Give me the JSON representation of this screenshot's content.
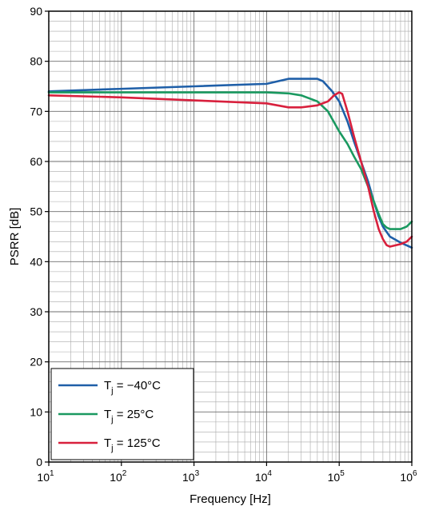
{
  "chart_data": {
    "type": "line",
    "xlabel": "Frequency [Hz]",
    "ylabel": "PSRR [dB]",
    "x_scale": "log",
    "xlim": [
      10,
      1000000
    ],
    "ylim": [
      0,
      90
    ],
    "grid": true,
    "legend_position": "bottom-left",
    "x_ticks": [
      {
        "value": 10,
        "base": "10",
        "exp": "1"
      },
      {
        "value": 100,
        "base": "10",
        "exp": "2"
      },
      {
        "value": 1000,
        "base": "10",
        "exp": "3"
      },
      {
        "value": 10000,
        "base": "10",
        "exp": "4"
      },
      {
        "value": 100000,
        "base": "10",
        "exp": "5"
      },
      {
        "value": 1000000,
        "base": "10",
        "exp": "6"
      }
    ],
    "y_ticks": [
      "0",
      "10",
      "20",
      "30",
      "40",
      "50",
      "60",
      "70",
      "80",
      "90"
    ],
    "series": [
      {
        "legend_main": "T",
        "legend_sub": "j",
        "legend_rest": " = −40°C",
        "color": "#1f5fa8",
        "points": [
          [
            10,
            74.0
          ],
          [
            100,
            74.5
          ],
          [
            1000,
            75.0
          ],
          [
            10000,
            75.5
          ],
          [
            20000,
            76.5
          ],
          [
            30000,
            76.5
          ],
          [
            50000,
            76.5
          ],
          [
            60000,
            76.0
          ],
          [
            80000,
            74.0
          ],
          [
            100000,
            72.0
          ],
          [
            130000,
            68.0
          ],
          [
            160000,
            64.0
          ],
          [
            200000,
            60.0
          ],
          [
            250000,
            56.0
          ],
          [
            300000,
            52.0
          ],
          [
            350000,
            49.0
          ],
          [
            400000,
            47.0
          ],
          [
            500000,
            45.0
          ],
          [
            700000,
            43.8
          ],
          [
            1000000,
            42.8
          ]
        ]
      },
      {
        "legend_main": "T",
        "legend_sub": "j",
        "legend_rest": " = 25°C",
        "color": "#1a9960",
        "points": [
          [
            10,
            73.8
          ],
          [
            100,
            73.8
          ],
          [
            1000,
            73.8
          ],
          [
            10000,
            73.8
          ],
          [
            20000,
            73.6
          ],
          [
            30000,
            73.2
          ],
          [
            50000,
            72.0
          ],
          [
            70000,
            70.0
          ],
          [
            100000,
            66.0
          ],
          [
            130000,
            63.5
          ],
          [
            160000,
            61.0
          ],
          [
            200000,
            58.5
          ],
          [
            250000,
            55.0
          ],
          [
            300000,
            52.0
          ],
          [
            350000,
            49.5
          ],
          [
            400000,
            47.5
          ],
          [
            450000,
            46.8
          ],
          [
            500000,
            46.5
          ],
          [
            700000,
            46.5
          ],
          [
            850000,
            47.0
          ],
          [
            1000000,
            48.0
          ]
        ]
      },
      {
        "legend_main": "T",
        "legend_sub": "j",
        "legend_rest": " = 125°C",
        "color": "#d8203d",
        "points": [
          [
            10,
            73.2
          ],
          [
            100,
            72.8
          ],
          [
            1000,
            72.2
          ],
          [
            10000,
            71.6
          ],
          [
            20000,
            70.8
          ],
          [
            30000,
            70.8
          ],
          [
            50000,
            71.2
          ],
          [
            70000,
            72.0
          ],
          [
            85000,
            73.2
          ],
          [
            100000,
            73.8
          ],
          [
            110000,
            73.5
          ],
          [
            130000,
            70.0
          ],
          [
            160000,
            65.0
          ],
          [
            200000,
            60.0
          ],
          [
            250000,
            55.0
          ],
          [
            300000,
            50.0
          ],
          [
            350000,
            46.5
          ],
          [
            400000,
            44.5
          ],
          [
            450000,
            43.3
          ],
          [
            500000,
            43.0
          ],
          [
            700000,
            43.5
          ],
          [
            850000,
            44.0
          ],
          [
            1000000,
            45.0
          ]
        ]
      }
    ]
  }
}
